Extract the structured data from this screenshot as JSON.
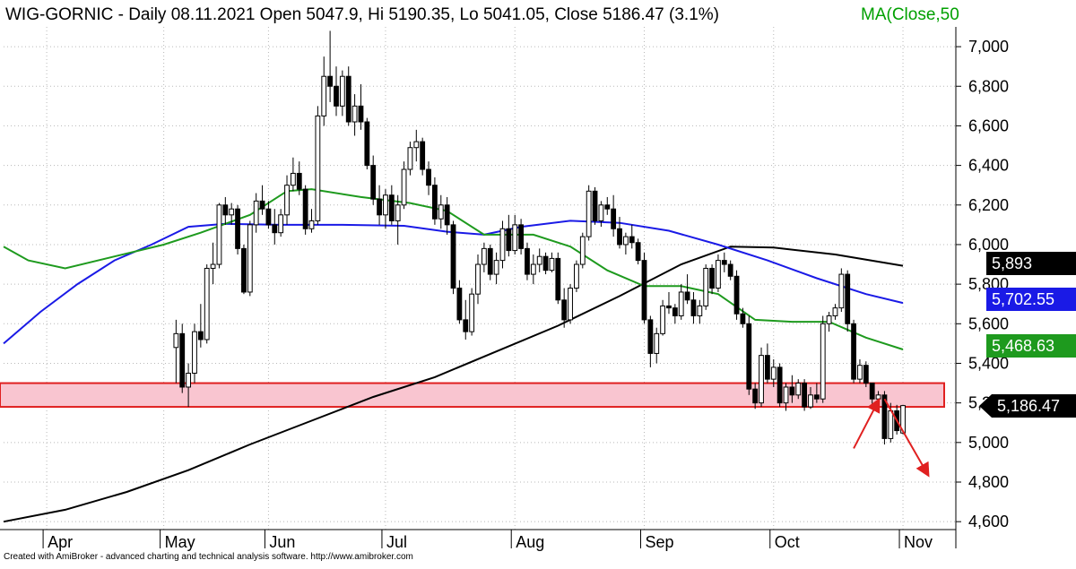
{
  "header": {
    "title": "WIG-GORNIC - Daily 08.11.2021 Open 5047.9, Hi 5190.35, Lo 5041.05, Close 5186.47 (3.1%)",
    "ma_label": "MA(Close,50"
  },
  "footer": {
    "credit": "Created with AmiBroker - advanced charting and technical analysis software. http://www.amibroker.com"
  },
  "chart_data": {
    "type": "candlestick",
    "y_range": [
      4560,
      7100
    ],
    "y_ticks": [
      {
        "value": 7000,
        "label": "7,000"
      },
      {
        "value": 6800,
        "label": "6,800"
      },
      {
        "value": 6600,
        "label": "6,600"
      },
      {
        "value": 6400,
        "label": "6,400"
      },
      {
        "value": 6200,
        "label": "6,200"
      },
      {
        "value": 6000,
        "label": "6,000"
      },
      {
        "value": 5800,
        "label": "5,800"
      },
      {
        "value": 5600,
        "label": "5,600"
      },
      {
        "value": 5400,
        "label": "5,400"
      },
      {
        "value": 5200,
        "label": "5,200"
      },
      {
        "value": 5000,
        "label": "5,000"
      },
      {
        "value": 4800,
        "label": "4,800"
      },
      {
        "value": 4600,
        "label": "4,600"
      }
    ],
    "x_range": [
      0,
      154
    ],
    "x_ticks": [
      {
        "index": 7,
        "label": "Apr"
      },
      {
        "index": 26,
        "label": "May"
      },
      {
        "index": 43,
        "label": "Jun"
      },
      {
        "index": 62,
        "label": "Jul"
      },
      {
        "index": 83,
        "label": "Aug"
      },
      {
        "index": 104,
        "label": "Sep"
      },
      {
        "index": 125,
        "label": "Oct"
      },
      {
        "index": 146,
        "label": "Nov"
      }
    ],
    "support_zone": {
      "low": 5180,
      "high": 5300,
      "fill": "#f9c5d0",
      "stroke": "#e02020"
    },
    "last_values": [
      {
        "name": "MA 200",
        "value": 5893,
        "label": "5,893",
        "bg": "#000000",
        "fg": "#ffffff"
      },
      {
        "name": "MA 100",
        "value": 5702.55,
        "label": "5,702.55",
        "bg": "#1a1ae6",
        "fg": "#ffffff"
      },
      {
        "name": "MA 50",
        "value": 5468.63,
        "label": "5,468.63",
        "bg": "#1e9a1e",
        "fg": "#ffffff"
      },
      {
        "name": "Close",
        "value": 5186.47,
        "label": "5,186.47",
        "bg": "#000000",
        "fg": "#ffffff"
      }
    ],
    "series": [
      {
        "name": "MA 200",
        "color": "#000000",
        "points": [
          [
            0,
            4600
          ],
          [
            10,
            4660
          ],
          [
            20,
            4750
          ],
          [
            30,
            4860
          ],
          [
            40,
            4990
          ],
          [
            50,
            5110
          ],
          [
            60,
            5230
          ],
          [
            70,
            5330
          ],
          [
            80,
            5460
          ],
          [
            90,
            5590
          ],
          [
            100,
            5740
          ],
          [
            110,
            5900
          ],
          [
            118,
            5990
          ],
          [
            125,
            5985
          ],
          [
            135,
            5950
          ],
          [
            146,
            5893
          ]
        ]
      },
      {
        "name": "MA 100",
        "color": "#1a1ae6",
        "points": [
          [
            0,
            5500
          ],
          [
            6,
            5660
          ],
          [
            12,
            5800
          ],
          [
            18,
            5920
          ],
          [
            24,
            6000
          ],
          [
            30,
            6090
          ],
          [
            36,
            6105
          ],
          [
            45,
            6100
          ],
          [
            55,
            6100
          ],
          [
            65,
            6095
          ],
          [
            72,
            6065
          ],
          [
            78,
            6050
          ],
          [
            84,
            6090
          ],
          [
            92,
            6120
          ],
          [
            100,
            6110
          ],
          [
            108,
            6070
          ],
          [
            116,
            6000
          ],
          [
            124,
            5920
          ],
          [
            132,
            5830
          ],
          [
            140,
            5750
          ],
          [
            146,
            5705
          ]
        ]
      },
      {
        "name": "MA 50",
        "color": "#1e9a1e",
        "points": [
          [
            0,
            5990
          ],
          [
            4,
            5920
          ],
          [
            10,
            5880
          ],
          [
            18,
            5940
          ],
          [
            26,
            6000
          ],
          [
            32,
            6060
          ],
          [
            40,
            6150
          ],
          [
            46,
            6270
          ],
          [
            50,
            6280
          ],
          [
            58,
            6240
          ],
          [
            66,
            6210
          ],
          [
            72,
            6170
          ],
          [
            78,
            6050
          ],
          [
            86,
            6050
          ],
          [
            92,
            5990
          ],
          [
            98,
            5870
          ],
          [
            104,
            5790
          ],
          [
            110,
            5790
          ],
          [
            116,
            5750
          ],
          [
            122,
            5620
          ],
          [
            128,
            5610
          ],
          [
            134,
            5610
          ],
          [
            140,
            5530
          ],
          [
            146,
            5470
          ]
        ]
      }
    ],
    "candles": [
      {
        "o": 5480,
        "h": 5620,
        "l": 5300,
        "c": 5550
      },
      {
        "o": 5550,
        "h": 5600,
        "l": 5250,
        "c": 5280
      },
      {
        "o": 5280,
        "h": 5400,
        "l": 5180,
        "c": 5350
      },
      {
        "o": 5350,
        "h": 5600,
        "l": 5300,
        "c": 5560
      },
      {
        "o": 5560,
        "h": 5700,
        "l": 5480,
        "c": 5520
      },
      {
        "o": 5520,
        "h": 5900,
        "l": 5500,
        "c": 5880
      },
      {
        "o": 5880,
        "h": 6010,
        "l": 5800,
        "c": 5900
      },
      {
        "o": 5900,
        "h": 6210,
        "l": 5880,
        "c": 6200
      },
      {
        "o": 6200,
        "h": 6240,
        "l": 6100,
        "c": 6150
      },
      {
        "o": 6150,
        "h": 6210,
        "l": 6100,
        "c": 6180
      },
      {
        "o": 6180,
        "h": 6200,
        "l": 5950,
        "c": 5980
      },
      {
        "o": 5980,
        "h": 6000,
        "l": 5750,
        "c": 5760
      },
      {
        "o": 5760,
        "h": 6120,
        "l": 5740,
        "c": 6100
      },
      {
        "o": 6100,
        "h": 6260,
        "l": 6060,
        "c": 6220
      },
      {
        "o": 6220,
        "h": 6300,
        "l": 6150,
        "c": 6180
      },
      {
        "o": 6180,
        "h": 6220,
        "l": 6080,
        "c": 6100
      },
      {
        "o": 6100,
        "h": 6180,
        "l": 6000,
        "c": 6060
      },
      {
        "o": 6060,
        "h": 6180,
        "l": 6040,
        "c": 6150
      },
      {
        "o": 6150,
        "h": 6350,
        "l": 6100,
        "c": 6300
      },
      {
        "o": 6300,
        "h": 6440,
        "l": 6270,
        "c": 6360
      },
      {
        "o": 6360,
        "h": 6420,
        "l": 6250,
        "c": 6280
      },
      {
        "o": 6280,
        "h": 6300,
        "l": 6050,
        "c": 6080
      },
      {
        "o": 6080,
        "h": 6180,
        "l": 6060,
        "c": 6120
      },
      {
        "o": 6120,
        "h": 6700,
        "l": 6100,
        "c": 6650
      },
      {
        "o": 6650,
        "h": 6950,
        "l": 6600,
        "c": 6850
      },
      {
        "o": 6850,
        "h": 7080,
        "l": 6720,
        "c": 6800
      },
      {
        "o": 6800,
        "h": 6900,
        "l": 6650,
        "c": 6700
      },
      {
        "o": 6700,
        "h": 6880,
        "l": 6650,
        "c": 6850
      },
      {
        "o": 6850,
        "h": 6900,
        "l": 6600,
        "c": 6620
      },
      {
        "o": 6620,
        "h": 6760,
        "l": 6550,
        "c": 6700
      },
      {
        "o": 6700,
        "h": 6810,
        "l": 6580,
        "c": 6620
      },
      {
        "o": 6620,
        "h": 6640,
        "l": 6380,
        "c": 6400
      },
      {
        "o": 6400,
        "h": 6450,
        "l": 6200,
        "c": 6230
      },
      {
        "o": 6230,
        "h": 6300,
        "l": 6100,
        "c": 6150
      },
      {
        "o": 6150,
        "h": 6280,
        "l": 6080,
        "c": 6250
      },
      {
        "o": 6250,
        "h": 6300,
        "l": 6100,
        "c": 6120
      },
      {
        "o": 6120,
        "h": 6250,
        "l": 6000,
        "c": 6200
      },
      {
        "o": 6200,
        "h": 6420,
        "l": 6180,
        "c": 6380
      },
      {
        "o": 6380,
        "h": 6520,
        "l": 6350,
        "c": 6490
      },
      {
        "o": 6490,
        "h": 6580,
        "l": 6420,
        "c": 6520
      },
      {
        "o": 6520,
        "h": 6540,
        "l": 6350,
        "c": 6380
      },
      {
        "o": 6380,
        "h": 6420,
        "l": 6250,
        "c": 6300
      },
      {
        "o": 6300,
        "h": 6340,
        "l": 6100,
        "c": 6130
      },
      {
        "o": 6130,
        "h": 6250,
        "l": 6080,
        "c": 6200
      },
      {
        "o": 6200,
        "h": 6240,
        "l": 6050,
        "c": 6100
      },
      {
        "o": 6100,
        "h": 6120,
        "l": 5750,
        "c": 5780
      },
      {
        "o": 5780,
        "h": 5820,
        "l": 5600,
        "c": 5620
      },
      {
        "o": 5620,
        "h": 5720,
        "l": 5520,
        "c": 5560
      },
      {
        "o": 5560,
        "h": 5780,
        "l": 5540,
        "c": 5750
      },
      {
        "o": 5750,
        "h": 5950,
        "l": 5700,
        "c": 5900
      },
      {
        "o": 5900,
        "h": 6010,
        "l": 5860,
        "c": 5980
      },
      {
        "o": 5980,
        "h": 6000,
        "l": 5820,
        "c": 5850
      },
      {
        "o": 5850,
        "h": 5960,
        "l": 5800,
        "c": 5920
      },
      {
        "o": 5920,
        "h": 6120,
        "l": 5880,
        "c": 6080
      },
      {
        "o": 6080,
        "h": 6150,
        "l": 5940,
        "c": 5970
      },
      {
        "o": 5970,
        "h": 6150,
        "l": 5950,
        "c": 6100
      },
      {
        "o": 6100,
        "h": 6130,
        "l": 5950,
        "c": 5980
      },
      {
        "o": 5980,
        "h": 6010,
        "l": 5820,
        "c": 5850
      },
      {
        "o": 5850,
        "h": 5950,
        "l": 5800,
        "c": 5900
      },
      {
        "o": 5900,
        "h": 5980,
        "l": 5860,
        "c": 5940
      },
      {
        "o": 5940,
        "h": 5960,
        "l": 5850,
        "c": 5870
      },
      {
        "o": 5870,
        "h": 5960,
        "l": 5860,
        "c": 5930
      },
      {
        "o": 5930,
        "h": 5960,
        "l": 5700,
        "c": 5720
      },
      {
        "o": 5720,
        "h": 5780,
        "l": 5580,
        "c": 5620
      },
      {
        "o": 5620,
        "h": 5800,
        "l": 5600,
        "c": 5780
      },
      {
        "o": 5780,
        "h": 5920,
        "l": 5760,
        "c": 5900
      },
      {
        "o": 5900,
        "h": 6060,
        "l": 5880,
        "c": 6040
      },
      {
        "o": 6040,
        "h": 6300,
        "l": 6020,
        "c": 6270
      },
      {
        "o": 6270,
        "h": 6290,
        "l": 6100,
        "c": 6120
      },
      {
        "o": 6120,
        "h": 6220,
        "l": 6090,
        "c": 6200
      },
      {
        "o": 6200,
        "h": 6240,
        "l": 6150,
        "c": 6180
      },
      {
        "o": 6180,
        "h": 6250,
        "l": 6040,
        "c": 6080
      },
      {
        "o": 6080,
        "h": 6140,
        "l": 5980,
        "c": 6000
      },
      {
        "o": 6000,
        "h": 6060,
        "l": 5950,
        "c": 6040
      },
      {
        "o": 6040,
        "h": 6100,
        "l": 5980,
        "c": 6010
      },
      {
        "o": 6010,
        "h": 6030,
        "l": 5900,
        "c": 5920
      },
      {
        "o": 5920,
        "h": 5960,
        "l": 5600,
        "c": 5620
      },
      {
        "o": 5620,
        "h": 5640,
        "l": 5380,
        "c": 5450
      },
      {
        "o": 5450,
        "h": 5580,
        "l": 5400,
        "c": 5550
      },
      {
        "o": 5550,
        "h": 5720,
        "l": 5540,
        "c": 5690
      },
      {
        "o": 5690,
        "h": 5760,
        "l": 5650,
        "c": 5680
      },
      {
        "o": 5680,
        "h": 5700,
        "l": 5600,
        "c": 5640
      },
      {
        "o": 5640,
        "h": 5800,
        "l": 5620,
        "c": 5760
      },
      {
        "o": 5760,
        "h": 5850,
        "l": 5700,
        "c": 5720
      },
      {
        "o": 5720,
        "h": 5760,
        "l": 5600,
        "c": 5640
      },
      {
        "o": 5640,
        "h": 5720,
        "l": 5600,
        "c": 5690
      },
      {
        "o": 5690,
        "h": 5900,
        "l": 5670,
        "c": 5880
      },
      {
        "o": 5880,
        "h": 5900,
        "l": 5750,
        "c": 5780
      },
      {
        "o": 5780,
        "h": 5950,
        "l": 5760,
        "c": 5920
      },
      {
        "o": 5920,
        "h": 5960,
        "l": 5860,
        "c": 5900
      },
      {
        "o": 5900,
        "h": 5920,
        "l": 5820,
        "c": 5840
      },
      {
        "o": 5840,
        "h": 5870,
        "l": 5620,
        "c": 5650
      },
      {
        "o": 5650,
        "h": 5680,
        "l": 5580,
        "c": 5600
      },
      {
        "o": 5600,
        "h": 5640,
        "l": 5240,
        "c": 5270
      },
      {
        "o": 5270,
        "h": 5300,
        "l": 5170,
        "c": 5200
      },
      {
        "o": 5200,
        "h": 5480,
        "l": 5180,
        "c": 5440
      },
      {
        "o": 5440,
        "h": 5500,
        "l": 5300,
        "c": 5320
      },
      {
        "o": 5320,
        "h": 5420,
        "l": 5280,
        "c": 5380
      },
      {
        "o": 5380,
        "h": 5400,
        "l": 5180,
        "c": 5200
      },
      {
        "o": 5200,
        "h": 5300,
        "l": 5160,
        "c": 5280
      },
      {
        "o": 5280,
        "h": 5340,
        "l": 5200,
        "c": 5240
      },
      {
        "o": 5240,
        "h": 5320,
        "l": 5220,
        "c": 5300
      },
      {
        "o": 5300,
        "h": 5320,
        "l": 5160,
        "c": 5180
      },
      {
        "o": 5180,
        "h": 5280,
        "l": 5170,
        "c": 5240
      },
      {
        "o": 5240,
        "h": 5300,
        "l": 5200,
        "c": 5220
      },
      {
        "o": 5220,
        "h": 5640,
        "l": 5200,
        "c": 5600
      },
      {
        "o": 5600,
        "h": 5660,
        "l": 5560,
        "c": 5640
      },
      {
        "o": 5640,
        "h": 5700,
        "l": 5620,
        "c": 5680
      },
      {
        "o": 5680,
        "h": 5880,
        "l": 5660,
        "c": 5850
      },
      {
        "o": 5850,
        "h": 5870,
        "l": 5560,
        "c": 5600
      },
      {
        "o": 5600,
        "h": 5620,
        "l": 5300,
        "c": 5320
      },
      {
        "o": 5320,
        "h": 5420,
        "l": 5300,
        "c": 5390
      },
      {
        "o": 5390,
        "h": 5410,
        "l": 5280,
        "c": 5300
      },
      {
        "o": 5300,
        "h": 5300,
        "l": 5180,
        "c": 5220
      },
      {
        "o": 5220,
        "h": 5260,
        "l": 5160,
        "c": 5240
      },
      {
        "o": 5240,
        "h": 5260,
        "l": 4990,
        "c": 5020
      },
      {
        "o": 5020,
        "h": 5200,
        "l": 5000,
        "c": 5160
      },
      {
        "o": 5160,
        "h": 5190,
        "l": 5040,
        "c": 5060
      },
      {
        "o": 5047.9,
        "h": 5190.35,
        "l": 5041.05,
        "c": 5186.47
      }
    ],
    "annotations": {
      "arrow_up": {
        "from": [
          138,
          4970
        ],
        "to": [
          142,
          5210
        ],
        "color": "#e02020"
      },
      "arrow_down": {
        "from": [
          143,
          5220
        ],
        "to": [
          150,
          4840
        ],
        "color": "#e02020"
      }
    }
  }
}
